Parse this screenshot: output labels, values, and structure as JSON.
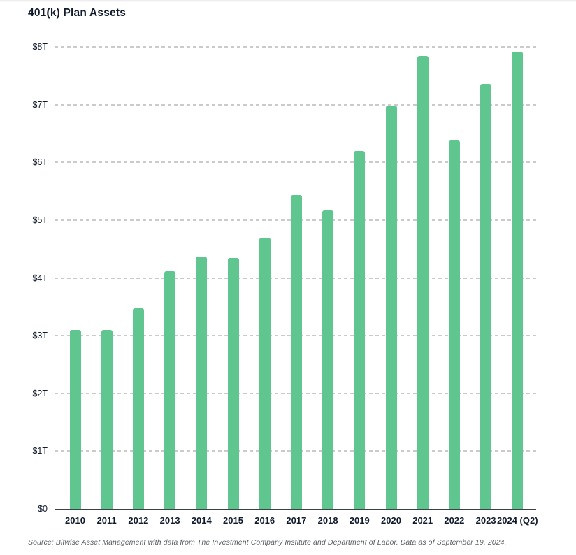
{
  "title": "401(k) Plan Assets",
  "source_note": "Source: Bitwise Asset Management with data from The Investment Company Institute and Department of Labor. Data as of September 19, 2024.",
  "colors": {
    "bar": "#5fc68f",
    "text": "#121b2e",
    "gridline": "#c9cbcd",
    "axis_line": "#3c4146",
    "source_text": "#595e63",
    "background": "#ffffff"
  },
  "chart_data": {
    "type": "bar",
    "title": "401(k) Plan Assets",
    "categories": [
      "2010",
      "2011",
      "2012",
      "2013",
      "2014",
      "2015",
      "2016",
      "2017",
      "2018",
      "2019",
      "2020",
      "2021",
      "2022",
      "2023",
      "2024 (Q2)"
    ],
    "values": [
      3.1,
      3.1,
      3.47,
      4.11,
      4.37,
      4.34,
      4.7,
      5.44,
      5.17,
      6.2,
      6.98,
      7.84,
      6.38,
      7.36,
      7.92
    ],
    "values_unit": "trillions USD",
    "xlabel": "",
    "ylabel": "",
    "ylim": [
      0,
      8
    ],
    "y_tick_labels": [
      "$0",
      "$1T",
      "$2T",
      "$3T",
      "$4T",
      "$5T",
      "$6T",
      "$7T",
      "$8T"
    ],
    "grid": "horizontal-dashed",
    "legend": "none"
  }
}
